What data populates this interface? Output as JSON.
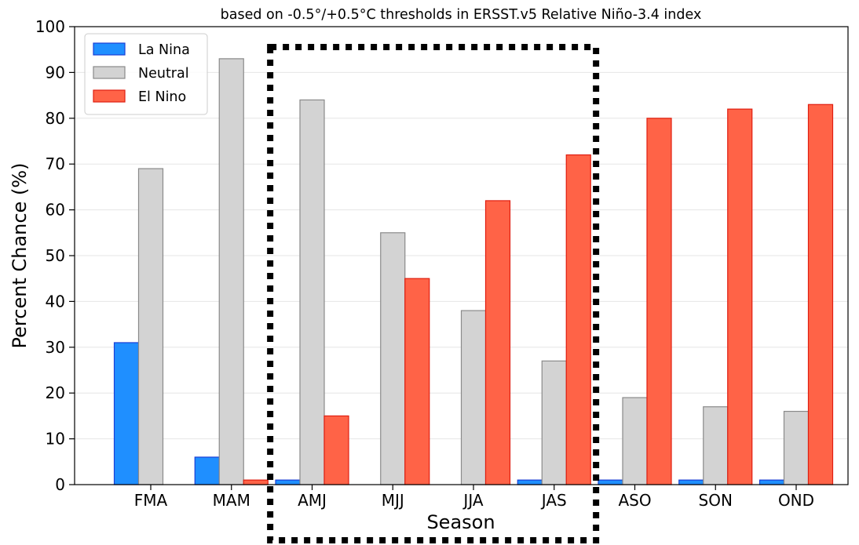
{
  "chart_data": {
    "type": "bar",
    "title": "based on -0.5°/+0.5°C thresholds in ERSST.v5 Relative Niño-3.4 index",
    "xlabel": "Season",
    "ylabel": "Percent Chance (%)",
    "ylim": [
      0,
      100
    ],
    "yticks": [
      0,
      10,
      20,
      30,
      40,
      50,
      60,
      70,
      80,
      90,
      100
    ],
    "grid": "horizontal",
    "legend_position": "top-left",
    "categories": [
      "FMA",
      "MAM",
      "AMJ",
      "MJJ",
      "JJA",
      "JAS",
      "ASO",
      "SON",
      "OND"
    ],
    "series": [
      {
        "name": "La Nina",
        "color": "#1f8fff",
        "edge": "#1a3fd6",
        "values": [
          31,
          6,
          1,
          0,
          0,
          1,
          1,
          1,
          1
        ]
      },
      {
        "name": "Neutral",
        "color": "#d3d3d3",
        "edge": "#8a8a8a",
        "values": [
          69,
          93,
          84,
          55,
          38,
          27,
          19,
          17,
          16
        ]
      },
      {
        "name": "El Nino",
        "color": "#ff6347",
        "edge": "#e01e10",
        "values": [
          0,
          1,
          15,
          45,
          62,
          72,
          80,
          82,
          83
        ]
      }
    ],
    "highlight": {
      "style": "dotted-box",
      "categories": [
        "AMJ",
        "MJJ",
        "JJA",
        "JAS"
      ]
    }
  }
}
